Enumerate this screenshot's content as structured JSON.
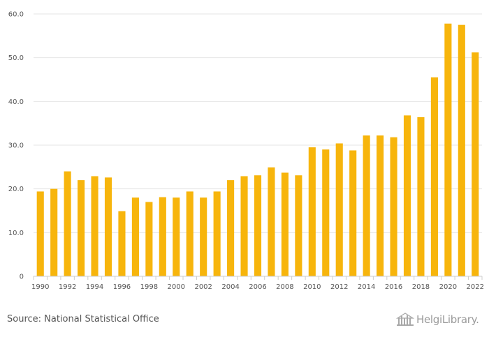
{
  "chart_data": {
    "type": "bar",
    "categories": [
      "1990",
      "1991",
      "1992",
      "1993",
      "1994",
      "1995",
      "1996",
      "1997",
      "1998",
      "1999",
      "2000",
      "2001",
      "2002",
      "2003",
      "2004",
      "2005",
      "2006",
      "2007",
      "2008",
      "2009",
      "2010",
      "2011",
      "2012",
      "2013",
      "2014",
      "2015",
      "2016",
      "2017",
      "2018",
      "2019",
      "2020",
      "2021",
      "2022"
    ],
    "x_tick_labels": [
      "1990",
      "1992",
      "1994",
      "1996",
      "1998",
      "2000",
      "2002",
      "2004",
      "2006",
      "2008",
      "2010",
      "2012",
      "2014",
      "2016",
      "2018",
      "2020",
      "2022"
    ],
    "values": [
      19.4,
      20.0,
      24.0,
      22.0,
      22.9,
      22.6,
      14.9,
      18.0,
      17.0,
      18.1,
      18.0,
      19.4,
      18.0,
      19.4,
      22.0,
      22.9,
      23.1,
      24.9,
      23.7,
      23.1,
      29.5,
      29.0,
      30.4,
      28.8,
      32.2,
      32.2,
      31.8,
      36.8,
      36.4,
      45.5,
      57.8,
      57.5,
      51.2
    ],
    "y_ticks": [
      0,
      10,
      20,
      30,
      40,
      50,
      60
    ],
    "y_tick_labels": [
      "0",
      "10.0",
      "20.0",
      "30.0",
      "40.0",
      "50.0",
      "60.0"
    ],
    "ylim": [
      0,
      60
    ],
    "title": "",
    "xlabel": "",
    "ylabel": "",
    "grid": true,
    "bar_color": "#f7b50c",
    "grid_color": "#e6e6e6"
  },
  "footer": {
    "source": "Source: National Statistical Office",
    "brand": "HelgiLibrary."
  }
}
